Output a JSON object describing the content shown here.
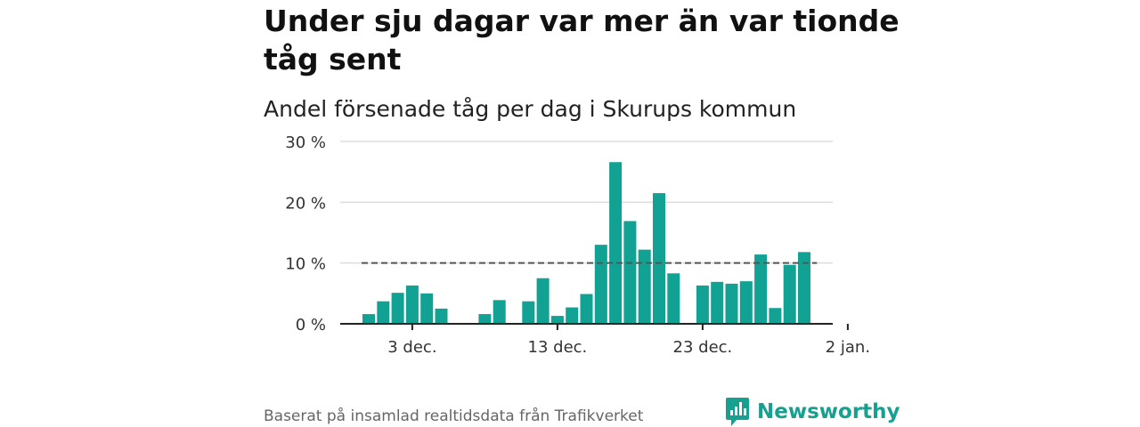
{
  "header": {
    "title": "Under sju dagar var mer än var tionde tåg sent",
    "subtitle": "Andel försenade tåg per dag i Skurups kommun"
  },
  "footer": {
    "source": "Baserat på insamlad realtidsdata från Trafikverket",
    "brand": "Newsworthy"
  },
  "colors": {
    "bar": "#11a294",
    "brand": "#17a08f",
    "reference_line": "#555555",
    "grid": "#dddddd"
  },
  "chart_data": {
    "type": "bar",
    "title": "Andel försenade tåg per dag i Skurups kommun",
    "ylim": [
      0,
      30
    ],
    "yticks": [
      0,
      10,
      20,
      30
    ],
    "ytick_labels": [
      "0 %",
      "10 %",
      "20 %",
      "30 %"
    ],
    "xticks": [
      {
        "date": "2020-12-03",
        "label": "3 dec."
      },
      {
        "date": "2020-12-13",
        "label": "13 dec."
      },
      {
        "date": "2020-12-23",
        "label": "23 dec."
      },
      {
        "date": "2021-01-02",
        "label": "2 jan."
      }
    ],
    "reference_line": {
      "value": 10,
      "style": "dashed",
      "from": "2020-11-30",
      "to": "2020-12-31"
    },
    "grid": true,
    "x": [
      "2020-11-30",
      "2020-12-01",
      "2020-12-02",
      "2020-12-03",
      "2020-12-04",
      "2020-12-05",
      "2020-12-06",
      "2020-12-07",
      "2020-12-08",
      "2020-12-09",
      "2020-12-10",
      "2020-12-11",
      "2020-12-12",
      "2020-12-13",
      "2020-12-14",
      "2020-12-15",
      "2020-12-16",
      "2020-12-17",
      "2020-12-18",
      "2020-12-19",
      "2020-12-20",
      "2020-12-21",
      "2020-12-22",
      "2020-12-23",
      "2020-12-24",
      "2020-12-25",
      "2020-12-26",
      "2020-12-27",
      "2020-12-28",
      "2020-12-29",
      "2020-12-30",
      "2020-12-31"
    ],
    "values": [
      1.6,
      3.7,
      5.1,
      6.3,
      5.0,
      2.5,
      null,
      null,
      1.6,
      3.9,
      null,
      3.7,
      7.5,
      1.3,
      2.7,
      4.9,
      13.0,
      26.6,
      16.9,
      12.2,
      21.5,
      8.3,
      null,
      6.3,
      6.9,
      6.6,
      7.0,
      11.4,
      2.6,
      9.7,
      11.8,
      null
    ]
  }
}
